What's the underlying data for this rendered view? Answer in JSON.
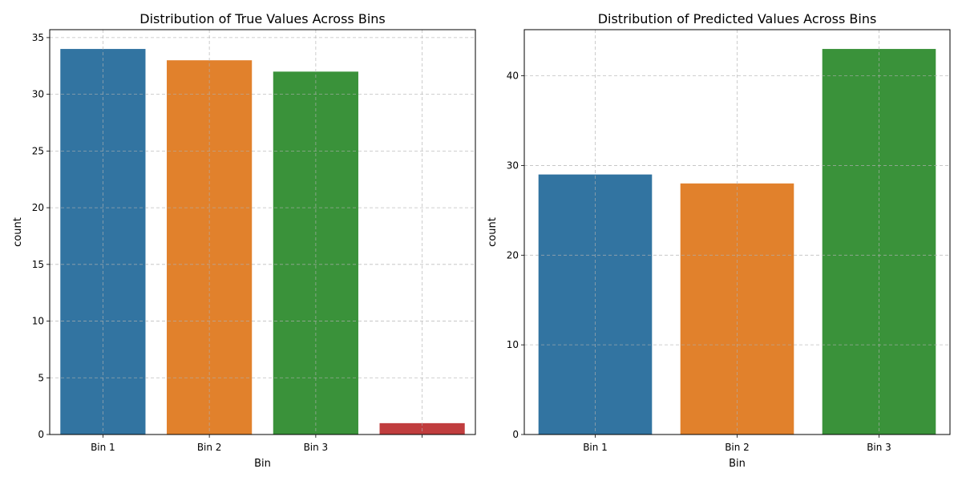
{
  "chart_data": [
    {
      "type": "bar",
      "title": "Distribution of True Values Across Bins",
      "xlabel": "Bin",
      "ylabel": "count",
      "categories": [
        "Bin 1",
        "Bin 2",
        "Bin 3",
        ""
      ],
      "values": [
        34,
        33,
        32,
        1
      ],
      "colors": [
        "#3274a1",
        "#e1812c",
        "#3a923a",
        "#c03d3e"
      ],
      "ylim": [
        0,
        35.7
      ],
      "yticks": [
        0,
        5,
        10,
        15,
        20,
        25,
        30,
        35
      ],
      "grid": true
    },
    {
      "type": "bar",
      "title": "Distribution of Predicted Values Across Bins",
      "xlabel": "Bin",
      "ylabel": "count",
      "categories": [
        "Bin 1",
        "Bin 2",
        "Bin 3"
      ],
      "values": [
        29,
        28,
        43
      ],
      "colors": [
        "#3274a1",
        "#e1812c",
        "#3a923a"
      ],
      "ylim": [
        0,
        45.15
      ],
      "yticks": [
        0,
        10,
        20,
        30,
        40
      ],
      "grid": true
    }
  ]
}
